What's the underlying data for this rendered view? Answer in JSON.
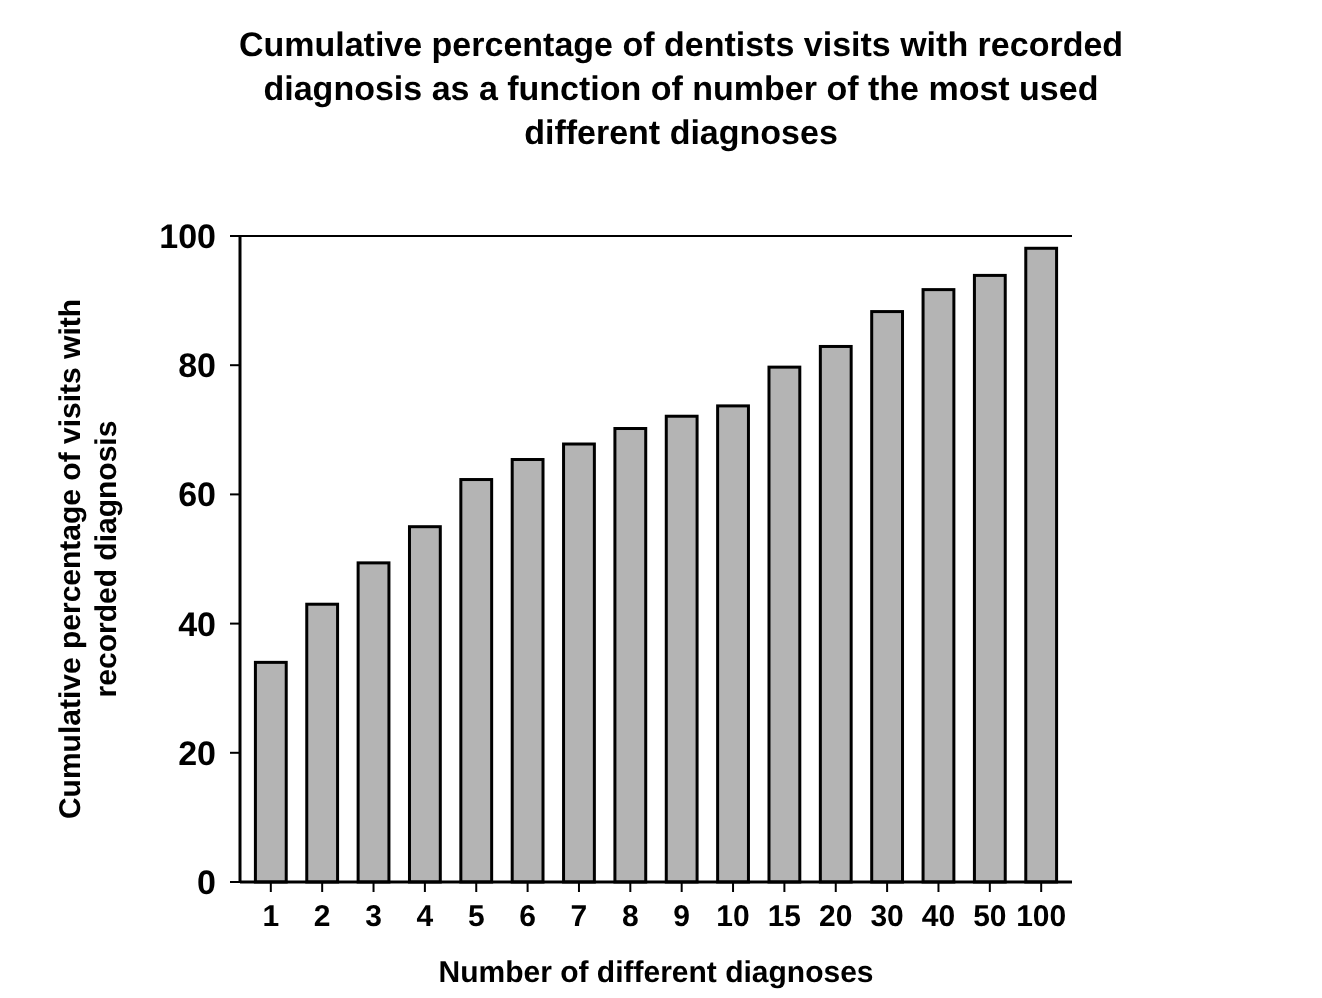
{
  "chart_data": {
    "type": "bar",
    "title": "Cumulative percentage of dentists visits with recorded diagnosis as a function of number of the most used different diagnoses",
    "xlabel": "Number of different diagnoses",
    "ylabel": "Cumulative percentage of visits with recorded diagnosis",
    "categories": [
      "1",
      "2",
      "3",
      "4",
      "5",
      "6",
      "7",
      "8",
      "9",
      "10",
      "15",
      "20",
      "30",
      "40",
      "50",
      "100"
    ],
    "values": [
      34,
      43,
      49.4,
      55,
      62.3,
      65.4,
      67.8,
      70.2,
      72.1,
      73.7,
      79.7,
      82.9,
      88.3,
      91.7,
      93.9,
      98.1
    ],
    "color": "#b4b4b4",
    "ylim": [
      0,
      100
    ],
    "yticks": [
      0,
      20,
      40,
      60,
      80,
      100
    ],
    "grid": false
  }
}
